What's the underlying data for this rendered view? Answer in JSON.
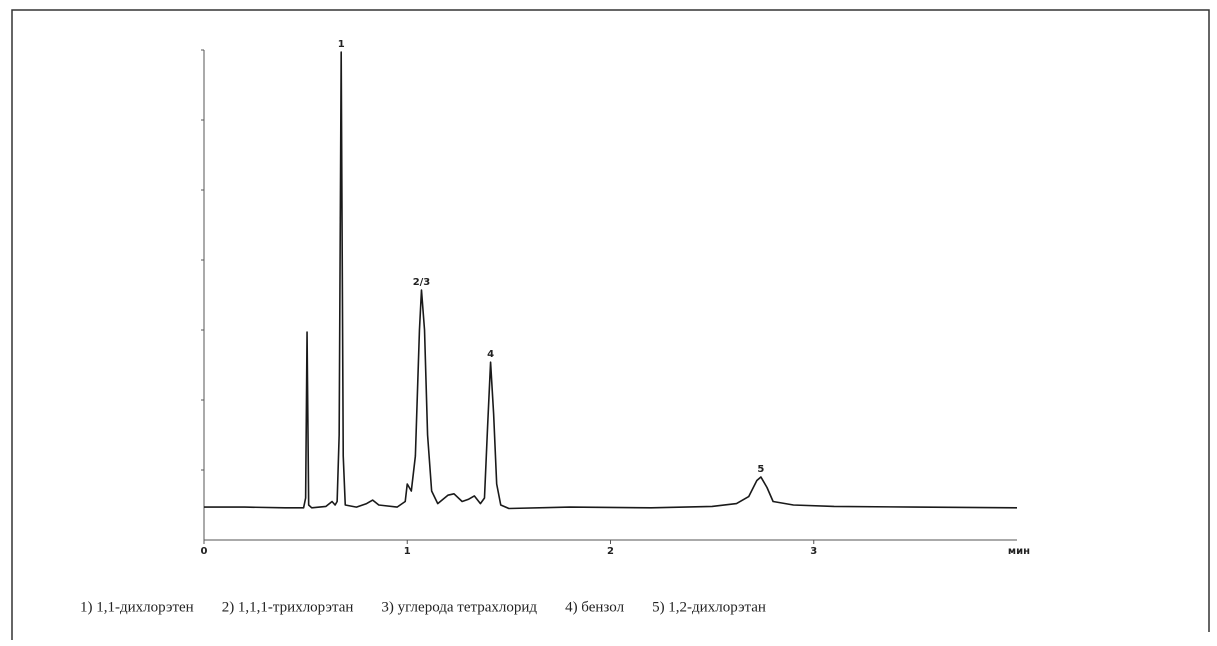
{
  "chart_data": {
    "type": "line",
    "x_label": "мин",
    "xlim": [
      0,
      4
    ],
    "xticks": [
      0,
      1,
      2,
      3
    ],
    "ylim": [
      0,
      7
    ],
    "yticks": [
      1,
      2,
      3,
      4,
      5,
      6,
      7
    ],
    "series": [
      {
        "color": "#1a1a1a",
        "x": [
          0.0,
          0.2,
          0.4,
          0.49,
          0.5,
          0.507,
          0.515,
          0.53,
          0.6,
          0.63,
          0.645,
          0.655,
          0.665,
          0.675,
          0.685,
          0.695,
          0.75,
          0.8,
          0.83,
          0.86,
          0.95,
          0.99,
          1.0,
          1.02,
          1.04,
          1.06,
          1.07,
          1.085,
          1.1,
          1.12,
          1.15,
          1.2,
          1.23,
          1.27,
          1.3,
          1.33,
          1.36,
          1.38,
          1.395,
          1.41,
          1.425,
          1.44,
          1.46,
          1.5,
          1.8,
          2.2,
          2.5,
          2.62,
          2.68,
          2.72,
          2.74,
          2.77,
          2.8,
          2.9,
          3.1,
          3.5,
          4.0
        ],
        "values": [
          0.47,
          0.47,
          0.46,
          0.46,
          0.6,
          2.97,
          0.5,
          0.46,
          0.48,
          0.55,
          0.5,
          0.55,
          1.5,
          6.97,
          1.2,
          0.5,
          0.47,
          0.52,
          0.57,
          0.5,
          0.47,
          0.55,
          0.8,
          0.7,
          1.2,
          3.0,
          3.57,
          3.0,
          1.5,
          0.7,
          0.52,
          0.64,
          0.66,
          0.55,
          0.58,
          0.63,
          0.52,
          0.6,
          1.6,
          2.54,
          1.8,
          0.8,
          0.5,
          0.45,
          0.47,
          0.46,
          0.48,
          0.52,
          0.62,
          0.85,
          0.9,
          0.75,
          0.55,
          0.5,
          0.48,
          0.47,
          0.46
        ]
      }
    ],
    "annotations": [
      {
        "text": "1",
        "x": 0.675,
        "y": 6.97
      },
      {
        "text": "2/3",
        "x": 1.07,
        "y": 3.57
      },
      {
        "text": "4",
        "x": 1.41,
        "y": 2.54
      },
      {
        "text": "5",
        "x": 2.74,
        "y": 0.9
      }
    ],
    "caption": [
      "1) 1,1-дихлорэтен",
      "2) 1,1,1-трихлорэтан",
      "3) углерода тетрахлорид",
      "4) бензол",
      "5) 1,2-дихлорэтан"
    ]
  }
}
